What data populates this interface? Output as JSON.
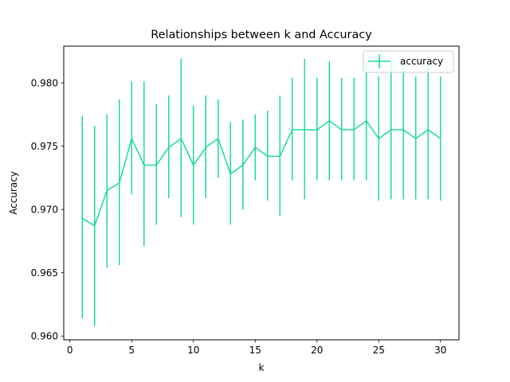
{
  "chart_data": {
    "type": "line",
    "title": "Relationships between k and Accuracy",
    "xlabel": "k",
    "ylabel": "Accuracy",
    "xlim": [
      -0.5,
      31.5
    ],
    "ylim": [
      0.9597,
      0.9829
    ],
    "xticks": [
      0,
      5,
      10,
      15,
      20,
      25,
      30
    ],
    "yticks": [
      0.96,
      0.965,
      0.97,
      0.975,
      0.98
    ],
    "ytick_labels": [
      "0.960",
      "0.965",
      "0.970",
      "0.975",
      "0.980"
    ],
    "grid": false,
    "legend": {
      "position": "top-right",
      "entries": [
        "accuracy"
      ]
    },
    "color": "#1dd9a0",
    "series": [
      {
        "name": "accuracy",
        "x": [
          1,
          2,
          3,
          4,
          5,
          6,
          7,
          8,
          9,
          10,
          11,
          12,
          13,
          14,
          15,
          16,
          17,
          18,
          19,
          20,
          21,
          22,
          23,
          24,
          25,
          26,
          27,
          28,
          29,
          30
        ],
        "y": [
          0.9693,
          0.9687,
          0.9715,
          0.9721,
          0.9756,
          0.9735,
          0.9735,
          0.9749,
          0.9756,
          0.9735,
          0.9749,
          0.9756,
          0.9728,
          0.9735,
          0.9749,
          0.9742,
          0.9742,
          0.9763,
          0.9763,
          0.9763,
          0.977,
          0.9763,
          0.9763,
          0.977,
          0.9756,
          0.9763,
          0.9763,
          0.9756,
          0.9763,
          0.9756
        ],
        "err_low": [
          0.9614,
          0.9608,
          0.9654,
          0.9656,
          0.9712,
          0.9671,
          0.9688,
          0.9709,
          0.9694,
          0.9688,
          0.9709,
          0.9725,
          0.9688,
          0.97,
          0.9723,
          0.9707,
          0.9695,
          0.9723,
          0.9708,
          0.9723,
          0.9723,
          0.9723,
          0.9723,
          0.9723,
          0.9707,
          0.9708,
          0.9708,
          0.9708,
          0.9708,
          0.9707
        ],
        "err_high": [
          0.9774,
          0.9766,
          0.9775,
          0.9787,
          0.9801,
          0.9801,
          0.9783,
          0.979,
          0.9819,
          0.9782,
          0.979,
          0.9787,
          0.9769,
          0.9771,
          0.9775,
          0.9778,
          0.979,
          0.9804,
          0.9819,
          0.9804,
          0.9817,
          0.9804,
          0.9804,
          0.9817,
          0.9805,
          0.9818,
          0.9818,
          0.9805,
          0.9818,
          0.9805
        ]
      }
    ]
  }
}
